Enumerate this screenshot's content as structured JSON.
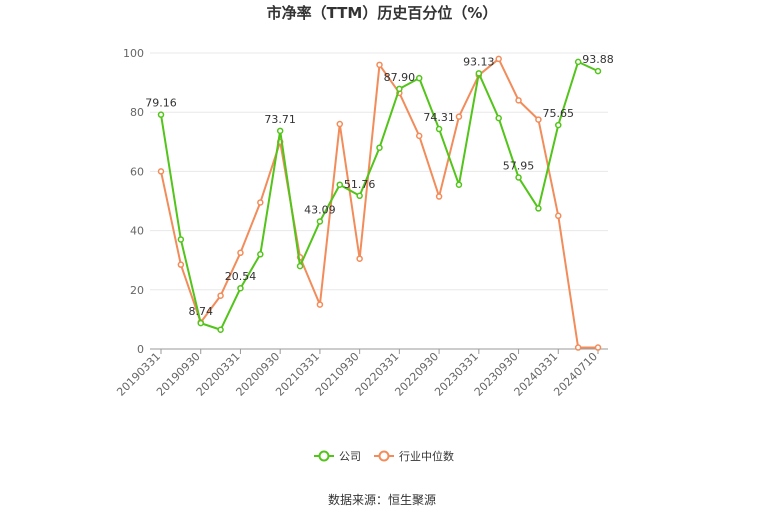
{
  "chart_data": {
    "type": "line",
    "title": "市净率（TTM）历史百分位（%）",
    "source": "数据来源：恒生聚源",
    "ylim": [
      0,
      100
    ],
    "y_ticks": [
      "0",
      "20",
      "40",
      "60",
      "80",
      "100"
    ],
    "x": [
      "20190331",
      "20190630",
      "20190930",
      "20191231",
      "20200331",
      "20200630",
      "20200930",
      "20201231",
      "20210331",
      "20210630",
      "20210930",
      "20211231",
      "20220331",
      "20220630",
      "20220930",
      "20221231",
      "20230331",
      "20230630",
      "20230930",
      "20231231",
      "20240331",
      "20240630",
      "20240710"
    ],
    "x_tick_labels": [
      "20190331",
      "20190930",
      "20200331",
      "20200930",
      "20210331",
      "20210930",
      "20220331",
      "20220930",
      "20230331",
      "20230930",
      "20240331",
      "20240710"
    ],
    "grid": "horizontal",
    "legend_position": "bottom",
    "series": [
      {
        "name": "公司",
        "color": "#52c41a",
        "values": [
          79.16,
          37.0,
          8.74,
          6.5,
          20.54,
          32.0,
          73.71,
          28.0,
          43.09,
          55.5,
          51.76,
          68.0,
          87.9,
          91.5,
          74.31,
          55.5,
          93.13,
          78.0,
          57.95,
          47.5,
          75.65,
          97.0,
          93.88
        ],
        "labels": {
          "0": "79.16",
          "2": "8.74",
          "4": "20.54",
          "6": "73.71",
          "8": "43.09",
          "10": "51.76",
          "12": "87.90",
          "14": "74.31",
          "16": "93.13",
          "18": "57.95",
          "20": "75.65",
          "22": "93.88"
        }
      },
      {
        "name": "行业中位数",
        "color": "#f28c5a",
        "values": [
          60.0,
          28.5,
          9.0,
          18.0,
          32.5,
          49.5,
          70.0,
          31.0,
          15.0,
          76.0,
          30.5,
          96.0,
          86.5,
          72.0,
          51.5,
          78.5,
          92.5,
          98.0,
          84.0,
          77.5,
          45.0,
          0.5,
          0.5
        ]
      }
    ]
  }
}
